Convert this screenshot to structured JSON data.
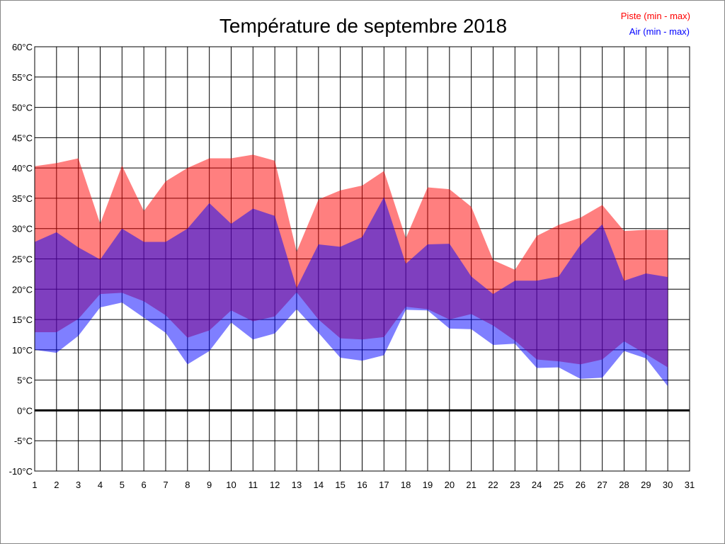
{
  "chart_data": {
    "type": "area",
    "title": "Température de septembre 2018",
    "xlabel": "",
    "ylabel": "",
    "xlim": [
      1,
      31
    ],
    "ylim": [
      -10,
      60
    ],
    "x_ticks": [
      1,
      2,
      3,
      4,
      5,
      6,
      7,
      8,
      9,
      10,
      11,
      12,
      13,
      14,
      15,
      16,
      17,
      18,
      19,
      20,
      21,
      22,
      23,
      24,
      25,
      26,
      27,
      28,
      29,
      30,
      31
    ],
    "y_ticks": [
      {
        "value": 60,
        "label": "60°C"
      },
      {
        "value": 55,
        "label": "55°C"
      },
      {
        "value": 50,
        "label": "50°C"
      },
      {
        "value": 45,
        "label": "45°C"
      },
      {
        "value": 40,
        "label": "40°C"
      },
      {
        "value": 35,
        "label": "35°C"
      },
      {
        "value": 30,
        "label": "30°C"
      },
      {
        "value": 25,
        "label": "25°C"
      },
      {
        "value": 20,
        "label": "20°C"
      },
      {
        "value": 15,
        "label": "15°C"
      },
      {
        "value": 10,
        "label": "10°C"
      },
      {
        "value": 5,
        "label": "5°C"
      },
      {
        "value": 0,
        "label": "0°C"
      },
      {
        "value": -5,
        "label": "-5°C"
      },
      {
        "value": -10,
        "label": "-10°C"
      }
    ],
    "grid": true,
    "legend_placement": "top-right",
    "x": [
      1,
      2,
      3,
      4,
      5,
      6,
      7,
      8,
      9,
      10,
      11,
      12,
      13,
      14,
      15,
      16,
      17,
      18,
      19,
      20,
      21,
      22,
      23,
      24,
      25,
      26,
      27,
      28,
      29,
      30
    ],
    "series": [
      {
        "name": "Piste (min - max)",
        "color": "#ff0000",
        "fill": "#ff0000",
        "max": [
          40.3,
          40.8,
          41.6,
          30.8,
          40.4,
          32.9,
          37.8,
          40.0,
          41.6,
          41.6,
          42.2,
          41.2,
          26.2,
          34.8,
          36.3,
          37.1,
          39.5,
          28.4,
          36.8,
          36.5,
          33.6,
          24.8,
          23.2,
          28.8,
          30.6,
          31.8,
          33.9,
          29.6,
          29.8,
          29.8
        ],
        "min": [
          12.9,
          12.9,
          15.1,
          19.2,
          19.4,
          18.0,
          15.7,
          12.0,
          13.2,
          16.5,
          14.7,
          15.5,
          19.5,
          15.0,
          11.9,
          11.7,
          12.1,
          17.1,
          16.7,
          15.0,
          15.9,
          14.0,
          11.5,
          8.4,
          8.1,
          7.6,
          8.4,
          11.4,
          9.3,
          7.1
        ]
      },
      {
        "name": "Air (min - max)",
        "color": "#0000ff",
        "fill": "#0000ff",
        "max": [
          27.8,
          29.4,
          26.9,
          24.9,
          30.0,
          27.8,
          27.8,
          30.0,
          34.2,
          30.8,
          33.3,
          32.1,
          20.2,
          27.4,
          27.0,
          28.6,
          35.2,
          24.2,
          27.4,
          27.5,
          22.1,
          19.2,
          21.4,
          21.4,
          22.1,
          27.3,
          30.7,
          21.4,
          22.6,
          22.0
        ],
        "min": [
          10.0,
          9.5,
          12.3,
          17.0,
          17.8,
          15.3,
          12.8,
          7.6,
          9.8,
          14.5,
          11.7,
          12.7,
          16.7,
          12.8,
          8.7,
          8.2,
          9.1,
          16.6,
          16.5,
          13.5,
          13.4,
          10.8,
          11.0,
          7.0,
          7.1,
          5.2,
          5.4,
          9.8,
          8.6,
          4.0
        ]
      }
    ]
  }
}
